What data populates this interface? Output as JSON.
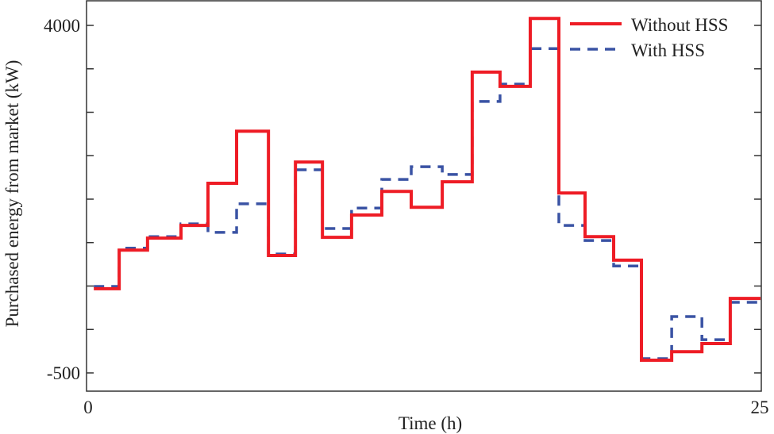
{
  "chart_data": {
    "type": "line",
    "step": true,
    "title": "",
    "xlabel": "Time (h)",
    "ylabel": "Purchased energy from market (kW)",
    "xlim": [
      0,
      25
    ],
    "ylim": [
      -500,
      4000
    ],
    "x_tick_labels": [
      "0",
      "25"
    ],
    "y_tick_labels": [
      "4000",
      "-500"
    ],
    "y_ticks": [
      -500,
      62.5,
      625,
      1187.5,
      1750,
      2312.5,
      2875,
      3437.5,
      4000
    ],
    "grid": false,
    "legend_position": "top-right",
    "step_edges": [
      0.27,
      1.21,
      2.26,
      3.5,
      4.5,
      5.56,
      6.74,
      7.74,
      8.74,
      9.82,
      10.94,
      12.03,
      13.18,
      14.29,
      15.32,
      16.44,
      17.5,
      18.47,
      19.53,
      20.56,
      21.68,
      22.8,
      23.85,
      24.97
    ],
    "series": [
      {
        "name": "Without HSS",
        "color": "#ee1c25",
        "style": "solid",
        "values": [
          590,
          1090,
          1245,
          1410,
          1955,
          2630,
          1020,
          2230,
          1255,
          1545,
          1850,
          1645,
          1975,
          3395,
          3210,
          4090,
          1830,
          1265,
          960,
          -335,
          -225,
          -120,
          465
        ]
      },
      {
        "name": "With HSS",
        "color": "#3a53a4",
        "style": "dashed",
        "values": [
          620,
          1115,
          1265,
          1430,
          1320,
          1690,
          1040,
          2130,
          1370,
          1635,
          2005,
          2170,
          2070,
          3015,
          3240,
          3700,
          1410,
          1215,
          885,
          -315,
          230,
          -70,
          415
        ]
      }
    ]
  }
}
